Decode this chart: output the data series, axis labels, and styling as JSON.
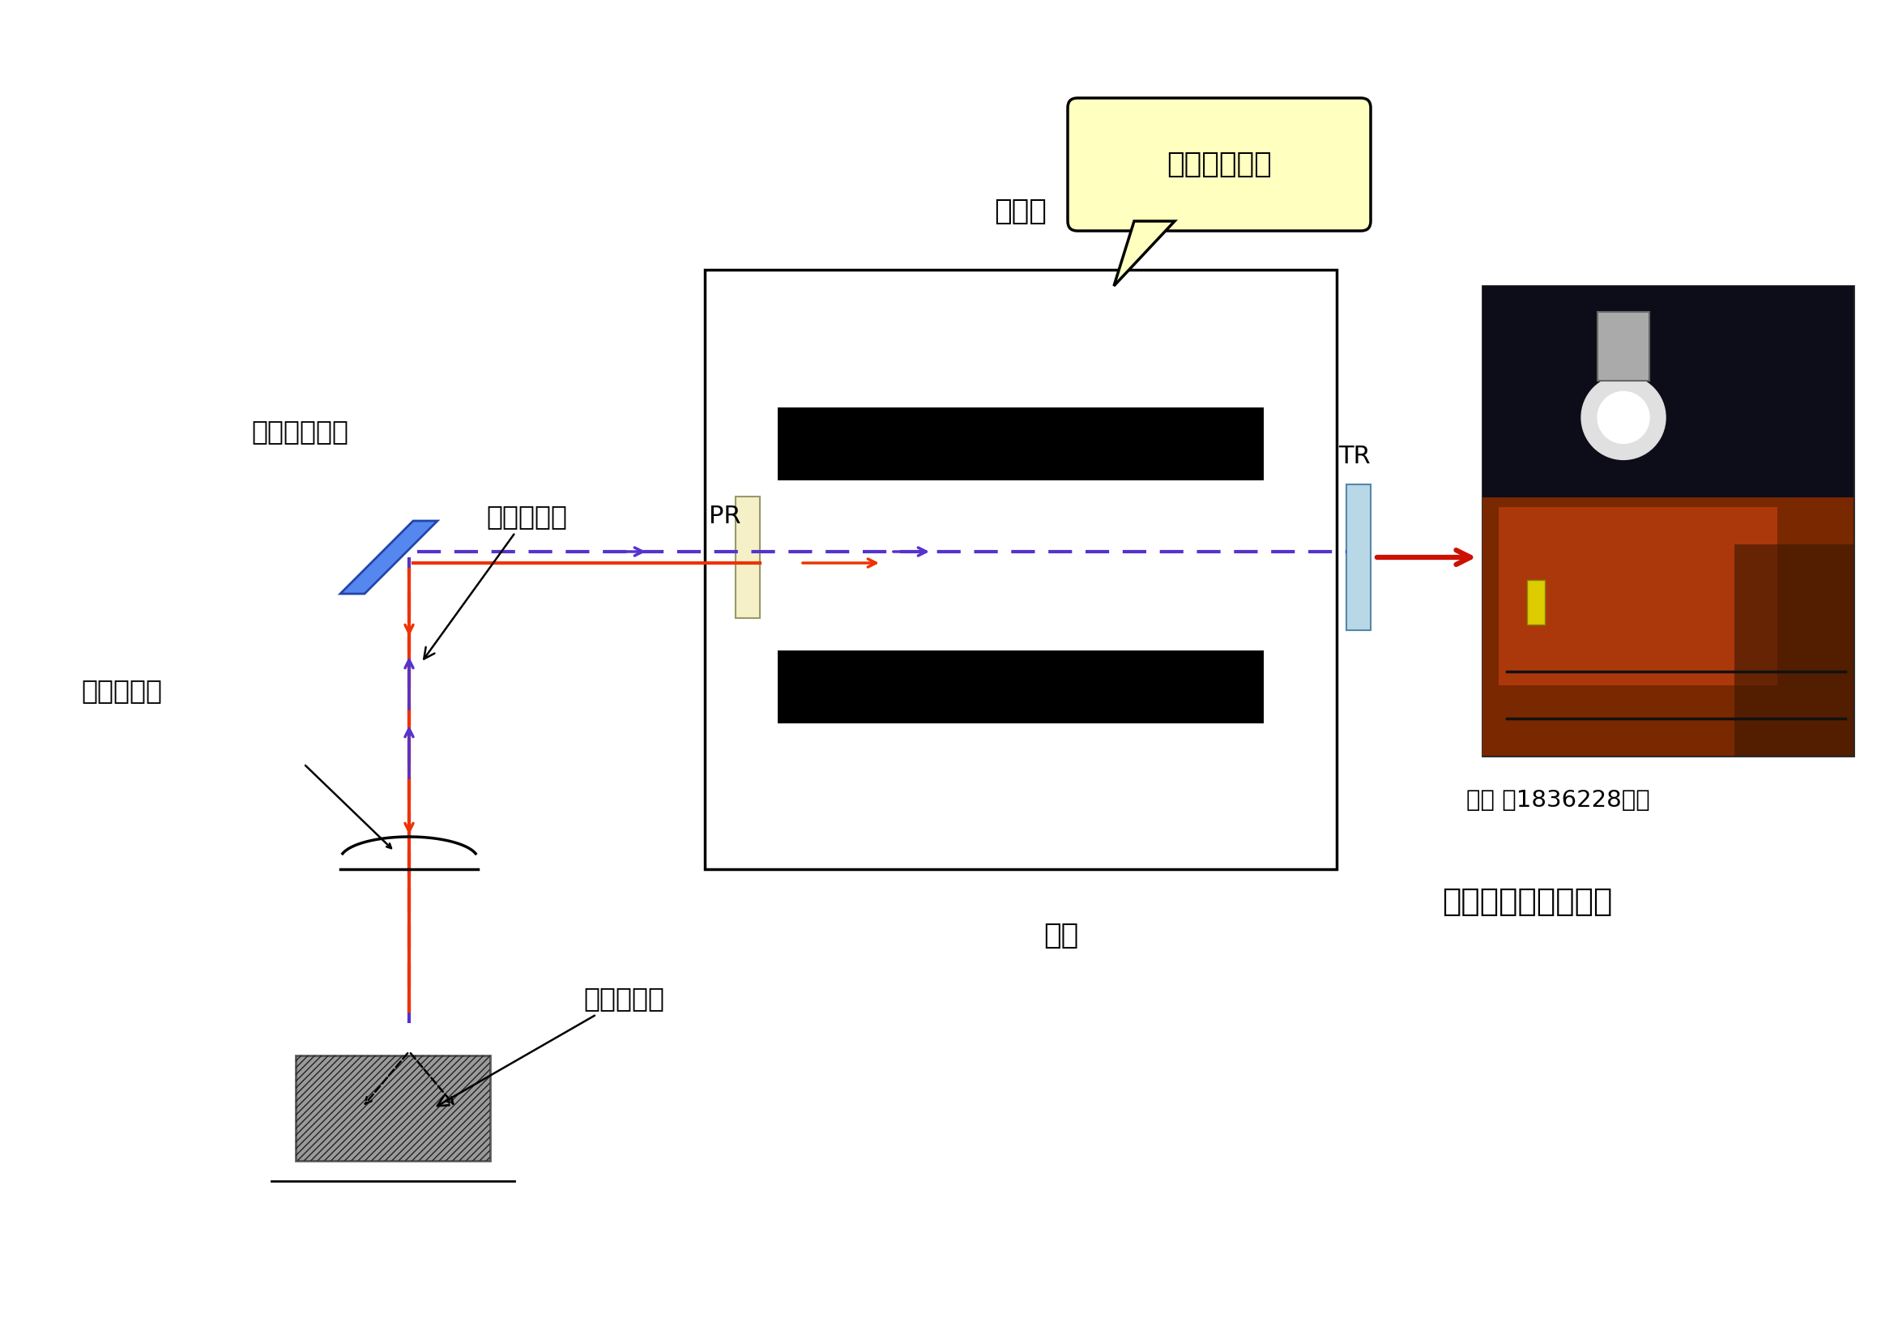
{
  "bg_color": "#ffffff",
  "fig_width": 23.38,
  "fig_height": 16.53,
  "label_oscillator": "発振器",
  "label_electrode": "電極",
  "label_PR": "PR",
  "label_TR": "TR",
  "label_bend_mirror": "ベンドミラー",
  "label_callout": "出力一定制御",
  "label_patent": "特許 第1836228号他",
  "label_sensor": "高速パワーセンサー",
  "label_irradiation": "照射ビーム",
  "label_reflection": "反射ビーム",
  "label_material": "高反射材料",
  "red_color": "#ee3300",
  "purple_color": "#5533cc",
  "mirror_blue": "#5588ee"
}
